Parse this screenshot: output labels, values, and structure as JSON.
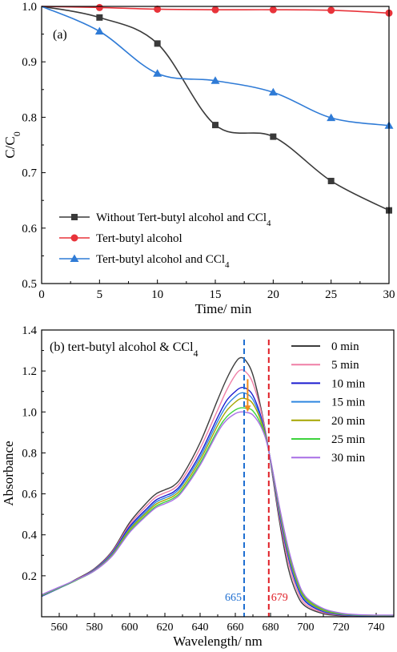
{
  "chart_data": [
    {
      "type": "scatter",
      "panel_label": "(a)",
      "xlabel": "Time/ min",
      "ylabel": "C/C0",
      "xlim": [
        0,
        30
      ],
      "ylim": [
        0.5,
        1.0
      ],
      "xticks": [
        0,
        5,
        10,
        15,
        20,
        25,
        30
      ],
      "yticks": [
        0.5,
        0.6,
        0.7,
        0.8,
        0.9,
        1.0
      ],
      "xtick_labels": [
        "0",
        "5",
        "10",
        "15",
        "20",
        "25",
        "30"
      ],
      "ytick_labels": [
        "0.5",
        "0.6",
        "0.7",
        "0.8",
        "0.9",
        "1.0"
      ],
      "legend_position": "lower-left",
      "series": [
        {
          "name": "Without Tert-butyl alcohol and CCl4",
          "marker": "square",
          "color": "#3a3a3a",
          "x": [
            0,
            5,
            10,
            15,
            20,
            25,
            30
          ],
          "values": [
            1.0,
            0.98,
            0.933,
            0.786,
            0.765,
            0.685,
            0.632
          ]
        },
        {
          "name": "Tert-butyl alcohol",
          "marker": "circle",
          "color": "#e8333a",
          "x": [
            0,
            5,
            10,
            15,
            20,
            25,
            30
          ],
          "values": [
            1.0,
            0.998,
            0.995,
            0.994,
            0.994,
            0.993,
            0.988
          ]
        },
        {
          "name": "Tert-butyl alcohol and CCl4",
          "marker": "triangle",
          "color": "#2f7bd6",
          "x": [
            0,
            5,
            10,
            15,
            20,
            25,
            30
          ],
          "values": [
            1.0,
            0.955,
            0.879,
            0.866,
            0.845,
            0.799,
            0.785
          ]
        }
      ]
    },
    {
      "type": "line",
      "panel_label": "(b) tert-butyl alcohol & CCl4",
      "xlabel": "Wavelength/ nm",
      "ylabel": "Absorbance",
      "xlim": [
        550,
        750
      ],
      "ylim": [
        0.0,
        1.4
      ],
      "xticks": [
        560,
        580,
        600,
        620,
        640,
        660,
        680,
        700,
        720,
        740
      ],
      "yticks": [
        0.2,
        0.4,
        0.6,
        0.8,
        1.0,
        1.2,
        1.4
      ],
      "xtick_labels": [
        "560",
        "580",
        "600",
        "620",
        "640",
        "660",
        "680",
        "700",
        "720",
        "740"
      ],
      "ytick_labels": [
        "0.2",
        "0.4",
        "0.6",
        "0.8",
        "1.0",
        "1.2",
        "1.4"
      ],
      "legend_position": "top-right",
      "annotations": [
        {
          "text": "665",
          "x": 665,
          "color": "#1f6fd1"
        },
        {
          "text": "679",
          "x": 679,
          "color": "#e01e26"
        }
      ],
      "arrow": {
        "x": 667,
        "from": 1.16,
        "to": 1.0,
        "color": "#f08a1c"
      },
      "x": [
        550,
        560,
        570,
        580,
        590,
        600,
        610,
        615,
        620,
        625,
        630,
        640,
        650,
        655,
        660,
        663,
        666,
        670,
        675,
        679,
        685,
        690,
        695,
        700,
        710,
        720,
        730,
        740,
        750
      ],
      "series": [
        {
          "name": "0 min",
          "color": "#3d3d3d",
          "values": [
            0.1,
            0.14,
            0.185,
            0.235,
            0.32,
            0.46,
            0.56,
            0.6,
            0.62,
            0.64,
            0.69,
            0.85,
            1.06,
            1.16,
            1.24,
            1.265,
            1.25,
            1.18,
            1.0,
            0.81,
            0.47,
            0.24,
            0.11,
            0.05,
            0.015,
            0.005,
            0.003,
            0.002,
            0.002
          ]
        },
        {
          "name": "5 min",
          "color": "#ef7fa6",
          "values": [
            0.1,
            0.14,
            0.182,
            0.232,
            0.315,
            0.45,
            0.545,
            0.585,
            0.605,
            0.625,
            0.672,
            0.822,
            1.01,
            1.105,
            1.18,
            1.205,
            1.195,
            1.14,
            0.99,
            0.81,
            0.49,
            0.27,
            0.13,
            0.06,
            0.02,
            0.008,
            0.004,
            0.003,
            0.003
          ]
        },
        {
          "name": "10 min",
          "color": "#1b1bcf",
          "values": [
            0.1,
            0.14,
            0.18,
            0.23,
            0.31,
            0.44,
            0.53,
            0.57,
            0.59,
            0.61,
            0.655,
            0.795,
            0.975,
            1.055,
            1.1,
            1.118,
            1.115,
            1.08,
            0.965,
            0.81,
            0.505,
            0.295,
            0.15,
            0.072,
            0.025,
            0.01,
            0.005,
            0.004,
            0.004
          ]
        },
        {
          "name": "15 min",
          "color": "#2f86e0",
          "values": [
            0.102,
            0.14,
            0.18,
            0.228,
            0.306,
            0.432,
            0.52,
            0.56,
            0.58,
            0.6,
            0.645,
            0.78,
            0.955,
            1.03,
            1.075,
            1.092,
            1.09,
            1.06,
            0.955,
            0.81,
            0.515,
            0.305,
            0.16,
            0.078,
            0.028,
            0.012,
            0.006,
            0.005,
            0.005
          ]
        },
        {
          "name": "20 min",
          "color": "#a5a500",
          "values": [
            0.104,
            0.142,
            0.18,
            0.226,
            0.302,
            0.425,
            0.512,
            0.55,
            0.57,
            0.59,
            0.632,
            0.765,
            0.935,
            1.005,
            1.048,
            1.065,
            1.064,
            1.04,
            0.945,
            0.81,
            0.525,
            0.318,
            0.17,
            0.085,
            0.032,
            0.014,
            0.008,
            0.006,
            0.006
          ]
        },
        {
          "name": "25 min",
          "color": "#3dd33d",
          "values": [
            0.106,
            0.143,
            0.18,
            0.224,
            0.298,
            0.417,
            0.503,
            0.54,
            0.56,
            0.58,
            0.62,
            0.75,
            0.912,
            0.975,
            1.01,
            1.02,
            1.018,
            1.005,
            0.93,
            0.81,
            0.535,
            0.33,
            0.18,
            0.092,
            0.036,
            0.016,
            0.009,
            0.007,
            0.007
          ]
        },
        {
          "name": "30 min",
          "color": "#a86ee6",
          "values": [
            0.108,
            0.145,
            0.182,
            0.224,
            0.296,
            0.412,
            0.497,
            0.533,
            0.552,
            0.572,
            0.612,
            0.74,
            0.9,
            0.96,
            0.992,
            1.0,
            0.998,
            0.985,
            0.92,
            0.81,
            0.54,
            0.338,
            0.188,
            0.098,
            0.04,
            0.018,
            0.01,
            0.008,
            0.008
          ]
        }
      ]
    }
  ]
}
